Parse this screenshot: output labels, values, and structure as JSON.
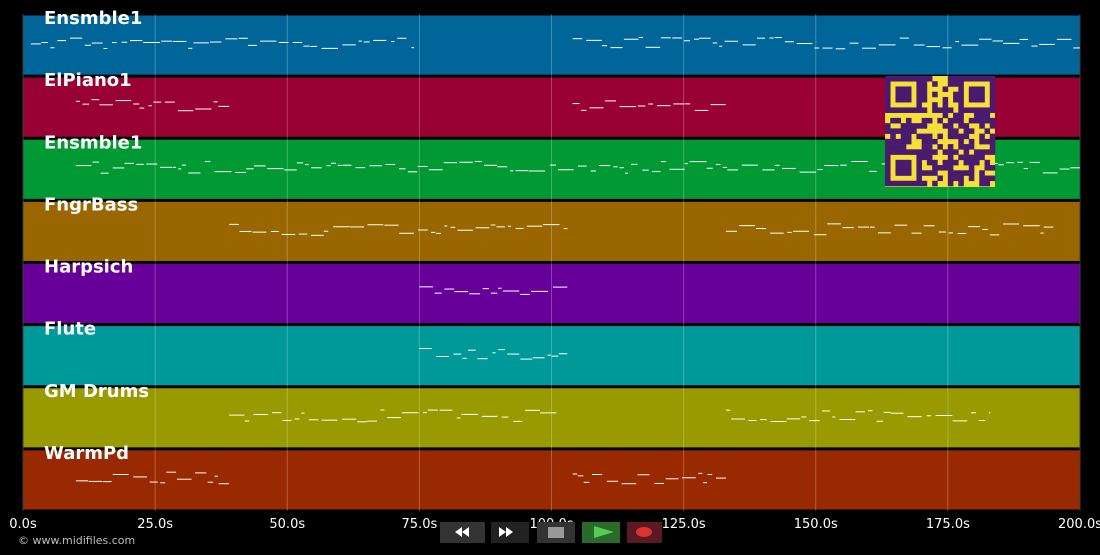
{
  "chart_data": {
    "type": "pianoroll",
    "xlim": [
      0,
      200
    ],
    "xticks": [
      {
        "value": 0,
        "label": "0.0s"
      },
      {
        "value": 25,
        "label": "25.0s"
      },
      {
        "value": 50,
        "label": "50.0s"
      },
      {
        "value": 75,
        "label": "75.0s"
      },
      {
        "value": 100,
        "label": "100.0s"
      },
      {
        "value": 125,
        "label": "125.0s"
      },
      {
        "value": 150,
        "label": "150.0s"
      },
      {
        "value": 175,
        "label": "175.0s"
      },
      {
        "value": 200,
        "label": "200.0s"
      }
    ],
    "grid": true,
    "tracks": [
      {
        "name": "Ensmble1",
        "color": "#006699",
        "spans": [
          [
            1.5,
            74
          ],
          [
            104,
            200
          ]
        ]
      },
      {
        "name": "ElPiano1",
        "color": "#990033",
        "spans": [
          [
            10,
            39
          ],
          [
            104,
            133
          ]
        ]
      },
      {
        "name": "Ensmble1",
        "color": "#009933",
        "spans": [
          [
            10,
            200
          ]
        ]
      },
      {
        "name": "FngrBass",
        "color": "#996600",
        "spans": [
          [
            39,
            103
          ],
          [
            133,
            195
          ]
        ]
      },
      {
        "name": "Harpsich",
        "color": "#660099",
        "spans": [
          [
            75,
            103
          ]
        ]
      },
      {
        "name": "Flute",
        "color": "#009999",
        "spans": [
          [
            75,
            103
          ]
        ]
      },
      {
        "name": "GM Drums",
        "color": "#999900",
        "spans": [
          [
            39,
            101
          ],
          [
            133,
            183
          ]
        ]
      },
      {
        "name": "WarmPd",
        "color": "#992900",
        "spans": [
          [
            10,
            39
          ],
          [
            104,
            133
          ]
        ]
      }
    ]
  },
  "footer": {
    "credit": "© www.midifiles.com"
  }
}
